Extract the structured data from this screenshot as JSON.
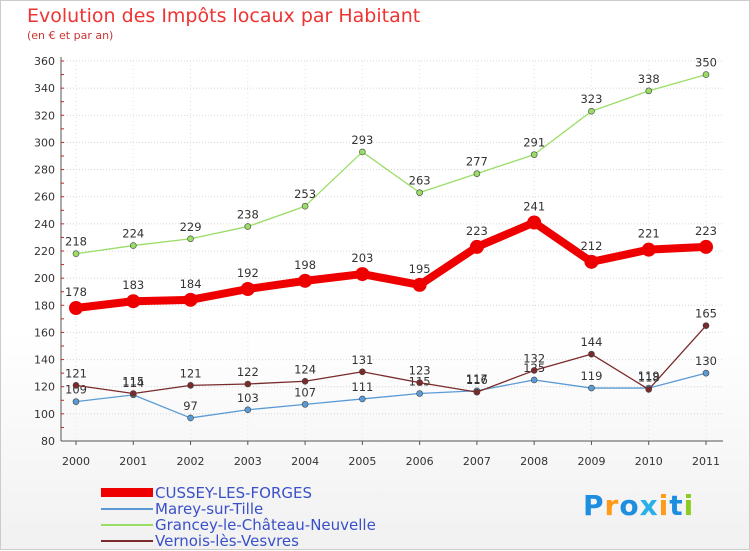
{
  "header": {
    "title": "Evolution des Impôts locaux par Habitant",
    "subtitle": "(en € et par an)"
  },
  "logo": {
    "text": "Proxiti",
    "letter_colors": [
      "#1e8ee0",
      "#ff9a1a",
      "#1e8ee0",
      "#2ab0e8",
      "#ff9a1a",
      "#1e8ee0",
      "#8ccc22"
    ]
  },
  "chart_data": {
    "type": "line",
    "x": [
      "2000",
      "2001",
      "2002",
      "2003",
      "2004",
      "2005",
      "2006",
      "2007",
      "2008",
      "2009",
      "2010",
      "2011"
    ],
    "ylim": [
      80,
      360
    ],
    "yticks": [
      80,
      100,
      120,
      140,
      160,
      180,
      200,
      220,
      240,
      260,
      280,
      300,
      320,
      340,
      360
    ],
    "grid": "horizontal",
    "legend_position": "bottom-left",
    "series": [
      {
        "name": "Marey-sur-Tille",
        "color": "#5b9bd5",
        "values": [
          109,
          114,
          97,
          103,
          107,
          111,
          115,
          117,
          125,
          119,
          119,
          130
        ]
      },
      {
        "name": "Grancey-le-Château-Neuvelle",
        "color": "#99dd66",
        "values": [
          218,
          224,
          229,
          238,
          253,
          293,
          263,
          277,
          291,
          323,
          338,
          350
        ]
      },
      {
        "name": "Vernois-lès-Vesvres",
        "color": "#7a2a2a",
        "values": [
          121,
          115,
          121,
          122,
          124,
          131,
          123,
          116,
          132,
          144,
          118,
          165
        ]
      },
      {
        "name": "CUSSEY-LES-FORGES",
        "color": "#ee0000",
        "values": [
          178,
          183,
          184,
          192,
          198,
          203,
          195,
          223,
          241,
          212,
          221,
          223
        ]
      }
    ],
    "data_labels": [
      {
        "series": "Marey-sur-Tille",
        "labels": [
          "109",
          "114",
          "97",
          "103",
          "107",
          "111",
          "115",
          "117",
          "125",
          "119",
          "119",
          "130"
        ]
      },
      {
        "series": "Grancey-le-Château-Neuvelle",
        "labels": [
          "218",
          "224",
          "229",
          "238",
          "253",
          "293",
          "263",
          "277",
          "291",
          "323",
          "338",
          "350"
        ]
      },
      {
        "series": "Vernois-lès-Vesvres",
        "labels": [
          "121",
          "115",
          "121",
          "122",
          "124",
          "131",
          "123",
          "116",
          "132",
          "144",
          "118",
          "165"
        ]
      },
      {
        "series": "CUSSEY-LES-FORGES",
        "labels": [
          "178",
          "183",
          "184",
          "192",
          "198",
          "203",
          "195",
          "223",
          "241",
          "212",
          "221",
          "223"
        ]
      }
    ]
  },
  "legend": {
    "items": [
      {
        "label": "CUSSEY-LES-FORGES",
        "color": "#ee0000",
        "thick": true
      },
      {
        "label": "Marey-sur-Tille",
        "color": "#5b9bd5",
        "thick": false
      },
      {
        "label": "Grancey-le-Château-Neuvelle",
        "color": "#99dd66",
        "thick": false
      },
      {
        "label": "Vernois-lès-Vesvres",
        "color": "#7a2a2a",
        "thick": false
      }
    ]
  }
}
